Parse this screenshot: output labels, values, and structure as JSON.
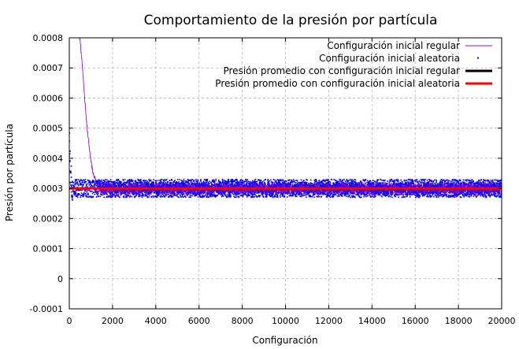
{
  "chart_data": {
    "type": "line",
    "title": "Comportamiento de la presión por partícula",
    "xlabel": "Configuración",
    "ylabel": "Presión por partícula",
    "xlim": [
      0,
      20000
    ],
    "ylim": [
      -0.0001,
      0.0008
    ],
    "xticks": [
      0,
      2000,
      4000,
      6000,
      8000,
      10000,
      12000,
      14000,
      16000,
      18000,
      20000
    ],
    "yticks": [
      -0.0001,
      0,
      0.0001,
      0.0002,
      0.0003,
      0.0004,
      0.0005,
      0.0006,
      0.0007,
      0.0008
    ],
    "x_tick_labels": [
      "0",
      "2000",
      "4000",
      "6000",
      "8000",
      "10000",
      "12000",
      "14000",
      "16000",
      "18000",
      "20000"
    ],
    "y_tick_labels": [
      "-0.0001",
      "0",
      "0.0001",
      "0.0002",
      "0.0003",
      "0.0004",
      "0.0005",
      "0.0006",
      "0.0007",
      "0.0008"
    ],
    "grid": true,
    "legend_position": "top-right",
    "series": [
      {
        "name": "Configuración inicial regular",
        "style": "line",
        "color": "#9400d3",
        "x": [
          0,
          300,
          400,
          500,
          600,
          700,
          800,
          900,
          1000,
          1100,
          1200,
          1300,
          1500,
          2000,
          4000,
          8000,
          12000,
          16000,
          20000
        ],
        "y": [
          0.00085,
          0.00085,
          0.00082,
          0.00079,
          0.00071,
          0.00061,
          0.00052,
          0.00045,
          0.00039,
          0.00035,
          0.00033,
          0.00031,
          0.000302,
          0.0003,
          0.0003,
          0.0003,
          0.0003,
          0.0003,
          0.0003
        ]
      },
      {
        "name": "Configuración inicial aleatoria",
        "style": "points",
        "color": "#0000ff",
        "x": [
          0,
          100,
          1000,
          2000,
          4000,
          6000,
          8000,
          10000,
          12000,
          14000,
          16000,
          18000,
          20000
        ],
        "y": [
          0.00045,
          0.0003,
          0.0003,
          0.0003,
          0.0003,
          0.0003,
          0.0003,
          0.0003,
          0.0003,
          0.0003,
          0.0003,
          0.0003,
          0.0003
        ],
        "spread": 3e-05
      },
      {
        "name": "Presión promedio con configuración inicial regular",
        "style": "line",
        "color": "#000000",
        "x": [
          0,
          20000
        ],
        "y": [
          0.0003,
          0.0003
        ]
      },
      {
        "name": "Presión promedio con configuración inicial aleatoria",
        "style": "line",
        "color": "#ff0000",
        "x": [
          0,
          20000
        ],
        "y": [
          0.0003,
          0.0003
        ]
      }
    ]
  }
}
